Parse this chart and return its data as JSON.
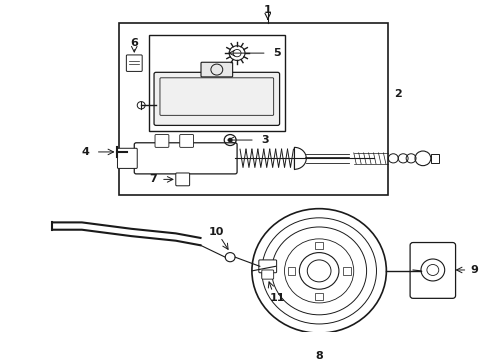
{
  "bg_color": "#ffffff",
  "line_color": "#1a1a1a",
  "label_color": "#1a1a1a",
  "fig_width": 4.89,
  "fig_height": 3.6,
  "dpi": 100
}
